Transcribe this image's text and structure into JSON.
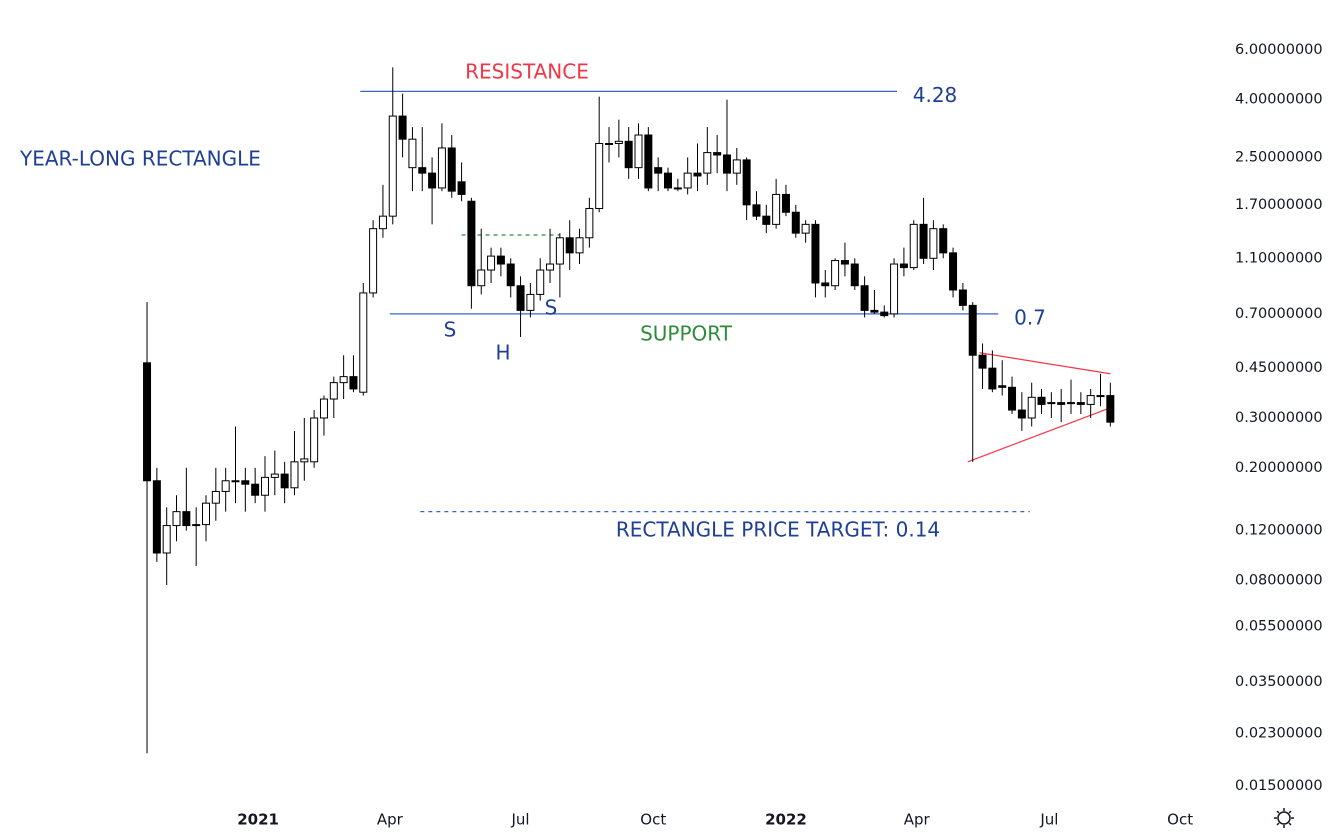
{
  "chart_data": {
    "type": "candlestick",
    "log_scale": true,
    "ylim": [
      0.0134,
      9.0
    ],
    "yticks": [
      {
        "value": 6,
        "label": "6.00000000"
      },
      {
        "value": 4,
        "label": "4.00000000"
      },
      {
        "value": 2.5,
        "label": "2.50000000"
      },
      {
        "value": 1.7,
        "label": "1.70000000"
      },
      {
        "value": 1.1,
        "label": "1.10000000"
      },
      {
        "value": 0.7,
        "label": "0.70000000"
      },
      {
        "value": 0.45,
        "label": "0.45000000"
      },
      {
        "value": 0.3,
        "label": "0.30000000"
      },
      {
        "value": 0.2,
        "label": "0.20000000"
      },
      {
        "value": 0.12,
        "label": "0.12000000"
      },
      {
        "value": 0.08,
        "label": "0.08000000"
      },
      {
        "value": 0.055,
        "label": "0.05500000"
      },
      {
        "value": 0.035,
        "label": "0.03500000"
      },
      {
        "value": 0.023,
        "label": "0.02300000"
      },
      {
        "value": 0.015,
        "label": "0.01500000"
      }
    ],
    "xlim": [
      -1,
      107
    ],
    "xticks": [
      {
        "value": 11.3,
        "label": "2021"
      },
      {
        "value": 24.7,
        "label": "Apr"
      },
      {
        "value": 38.0,
        "label": "Jul"
      },
      {
        "value": 51.5,
        "label": "Oct"
      },
      {
        "value": 65.0,
        "label": "2022"
      },
      {
        "value": 78.3,
        "label": "Apr"
      },
      {
        "value": 91.8,
        "label": "Jul"
      },
      {
        "value": 105.1,
        "label": "Oct"
      }
    ],
    "up_color": "#ffffff",
    "down_color": "#000000",
    "open": [
      0.47,
      0.18,
      0.1,
      0.125,
      0.14,
      0.125,
      0.126,
      0.15,
      0.165,
      0.18,
      0.18,
      0.175,
      0.16,
      0.185,
      0.19,
      0.17,
      0.21,
      0.21,
      0.3,
      0.35,
      0.4,
      0.42,
      0.37,
      0.83,
      1.4,
      1.55,
      3.5,
      2.3,
      2.3,
      2.2,
      1.95,
      2.7,
      2.05,
      1.75,
      0.88,
      1.0,
      1.12,
      1.05,
      0.88,
      0.72,
      0.82,
      1.0,
      1.05,
      1.3,
      1.15,
      1.3,
      1.65,
      2.8,
      2.8,
      2.85,
      2.3,
      3.0,
      2.3,
      2.2,
      1.95,
      1.95,
      2.2,
      2.2,
      2.6,
      2.55,
      2.2,
      2.45,
      1.7,
      1.55,
      1.45,
      1.85,
      1.6,
      1.35,
      1.45,
      0.9,
      0.88,
      1.08,
      1.05,
      0.88,
      0.72,
      0.71,
      0.7,
      1.05,
      1.02,
      1.45,
      1.1,
      1.4,
      1.15,
      0.85,
      0.75,
      0.5,
      0.45,
      0.39,
      0.385,
      0.32,
      0.3,
      0.355,
      0.34,
      0.34,
      0.34,
      0.34,
      0.335,
      0.36,
      0.36
    ],
    "high": [
      0.77,
      0.2,
      0.145,
      0.16,
      0.2,
      0.145,
      0.16,
      0.2,
      0.2,
      0.28,
      0.2,
      0.2,
      0.22,
      0.23,
      0.21,
      0.27,
      0.3,
      0.32,
      0.36,
      0.42,
      0.5,
      0.5,
      0.9,
      1.5,
      2.0,
      5.2,
      4.2,
      3.2,
      3.2,
      2.5,
      3.3,
      3.0,
      2.4,
      1.8,
      1.4,
      1.2,
      1.2,
      1.1,
      0.95,
      0.9,
      1.1,
      1.4,
      1.35,
      1.5,
      1.4,
      1.8,
      4.1,
      3.2,
      3.4,
      3.2,
      3.3,
      3.2,
      2.5,
      2.3,
      2.1,
      2.5,
      2.8,
      3.2,
      3.0,
      4.0,
      2.7,
      2.5,
      1.9,
      1.7,
      2.1,
      2.0,
      1.7,
      1.5,
      1.5,
      1.0,
      1.1,
      1.25,
      1.1,
      0.95,
      0.85,
      0.75,
      1.1,
      1.2,
      1.5,
      1.8,
      1.5,
      1.45,
      1.2,
      0.9,
      0.77,
      0.55,
      0.52,
      0.48,
      0.42,
      0.37,
      0.4,
      0.38,
      0.37,
      0.38,
      0.41,
      0.37,
      0.38,
      0.43,
      0.4
    ],
    "low": [
      0.0196,
      0.093,
      0.077,
      0.11,
      0.12,
      0.09,
      0.11,
      0.13,
      0.14,
      0.15,
      0.14,
      0.15,
      0.14,
      0.16,
      0.15,
      0.16,
      0.18,
      0.2,
      0.26,
      0.3,
      0.35,
      0.37,
      0.36,
      0.8,
      1.3,
      1.45,
      2.5,
      1.9,
      1.9,
      1.45,
      1.9,
      1.8,
      1.75,
      0.73,
      0.82,
      0.9,
      0.95,
      0.8,
      0.58,
      0.68,
      0.78,
      0.9,
      0.8,
      1.0,
      1.05,
      1.2,
      1.6,
      2.4,
      2.5,
      2.1,
      2.1,
      1.9,
      1.9,
      1.9,
      1.9,
      1.85,
      1.9,
      2.0,
      2.2,
      1.9,
      2.0,
      1.5,
      1.5,
      1.35,
      1.4,
      1.55,
      1.3,
      1.25,
      0.8,
      0.8,
      0.85,
      0.95,
      0.85,
      0.68,
      0.7,
      0.68,
      0.68,
      0.95,
      1.0,
      1.05,
      1.0,
      1.1,
      0.8,
      0.72,
      0.21,
      0.38,
      0.37,
      0.36,
      0.31,
      0.27,
      0.28,
      0.31,
      0.3,
      0.29,
      0.31,
      0.31,
      0.3,
      0.33,
      0.28
    ],
    "close": [
      0.18,
      0.1,
      0.125,
      0.14,
      0.125,
      0.126,
      0.15,
      0.165,
      0.18,
      0.18,
      0.175,
      0.16,
      0.185,
      0.19,
      0.17,
      0.21,
      0.215,
      0.3,
      0.35,
      0.4,
      0.42,
      0.38,
      0.83,
      1.4,
      1.55,
      3.5,
      2.9,
      2.9,
      2.2,
      1.95,
      2.7,
      1.9,
      1.85,
      0.88,
      1.0,
      1.12,
      1.05,
      0.88,
      0.72,
      0.82,
      1.0,
      1.05,
      1.3,
      1.15,
      1.3,
      1.65,
      2.8,
      2.8,
      2.85,
      2.3,
      3.0,
      1.95,
      2.2,
      1.95,
      1.95,
      2.2,
      2.15,
      2.6,
      2.55,
      2.2,
      2.45,
      1.7,
      1.55,
      1.45,
      1.85,
      1.6,
      1.35,
      1.45,
      0.9,
      0.88,
      1.08,
      1.05,
      0.88,
      0.72,
      0.71,
      0.69,
      1.05,
      1.02,
      1.45,
      1.1,
      1.4,
      1.15,
      0.85,
      0.75,
      0.5,
      0.45,
      0.38,
      0.385,
      0.32,
      0.3,
      0.355,
      0.335,
      0.34,
      0.335,
      0.34,
      0.335,
      0.36,
      0.36,
      0.29
    ],
    "levels": [
      {
        "value": 4.28,
        "color": "#3b66c9",
        "style": "solid",
        "show_value": true
      },
      {
        "value": 0.7,
        "color": "#3b66c9",
        "style": "solid",
        "show_value": true
      },
      {
        "value": 0.14,
        "color": "#3b66c9",
        "style": "dashed",
        "show_value": false
      },
      {
        "value": 1.33,
        "color": "#2e8b3a",
        "style": "dashed",
        "show_value": false
      }
    ],
    "trendlines": [
      {
        "color": "#f23645",
        "values": [
          0.51,
          0.43
        ]
      },
      {
        "color": "#f23645",
        "values": [
          0.21,
          0.326
        ]
      }
    ],
    "annotations": [
      {
        "text": "RESISTANCE",
        "color": "#f23645"
      },
      {
        "text": "YEAR-LONG RECTANGLE",
        "color": "#1f3f94"
      },
      {
        "text": "S",
        "color": "#1f3f94"
      },
      {
        "text": "H",
        "color": "#1f3f94"
      },
      {
        "text": "S",
        "color": "#1f3f94"
      },
      {
        "text": "SUPPORT",
        "color": "#2e8b3a"
      },
      {
        "text": "RECTANGLE PRICE TARGET: 0.14",
        "color": "#1f3f94"
      }
    ]
  }
}
